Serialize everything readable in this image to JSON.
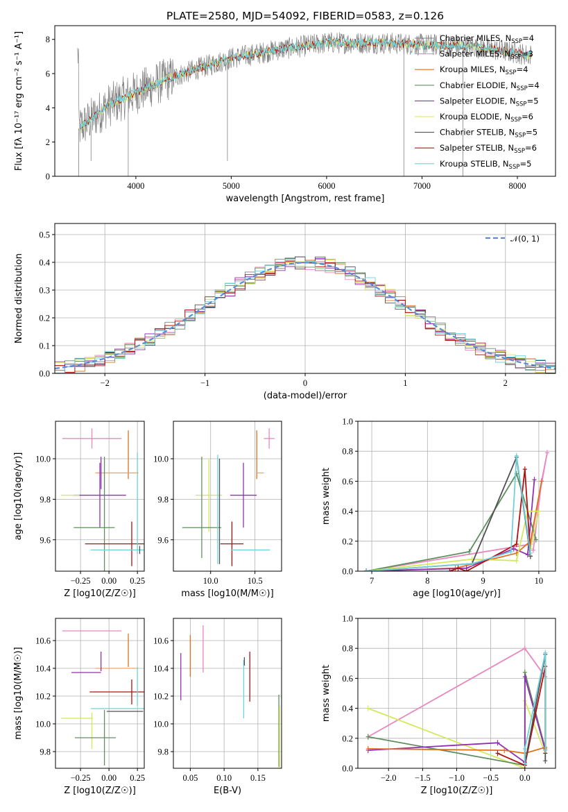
{
  "figure_title": "PLATE=2580, MJD=54092, FIBERID=0583, z=0.126",
  "colors": {
    "chabrier_miles": "#808080",
    "salpeter_miles": "#f4a460",
    "kroupa_miles": "#e07020",
    "chabrier_elodie": "#5f8f5f",
    "salpeter_elodie": "#9030b0",
    "kroupa_elodie": "#d4e85a",
    "chabrier_stelib": "#505050",
    "salpeter_stelib": "#b01010",
    "kroupa_stelib": "#6fd0d8",
    "spectrum_data": "#808080",
    "gaussian": "#5b8bd6",
    "pink": "#e887c0"
  },
  "legend": [
    {
      "label": "Chabrier MILES, N",
      "sub": "SSP",
      "suffix": "=4",
      "color": "#808080"
    },
    {
      "label": "Salpeter MILES, N",
      "sub": "SSP",
      "suffix": "=3",
      "color": "#e887c0"
    },
    {
      "label": "Kroupa MILES, N",
      "sub": "SSP",
      "suffix": "=4",
      "color": "#e07020"
    },
    {
      "label": "Chabrier ELODIE, N",
      "sub": "SSP",
      "suffix": "=4",
      "color": "#5f8f5f"
    },
    {
      "label": "Salpeter ELODIE, N",
      "sub": "SSP",
      "suffix": "=5",
      "color": "#9030b0"
    },
    {
      "label": "Kroupa ELODIE, N",
      "sub": "SSP",
      "suffix": "=6",
      "color": "#d4e85a"
    },
    {
      "label": "Chabrier STELIB, N",
      "sub": "SSP",
      "suffix": "=5",
      "color": "#505050"
    },
    {
      "label": "Salpeter STELIB, N",
      "sub": "SSP",
      "suffix": "=6",
      "color": "#b01010"
    },
    {
      "label": "Kroupa STELIB, N",
      "sub": "SSP",
      "suffix": "=5",
      "color": "#6fd0d8"
    }
  ],
  "hist_legend": "𝒩(0, 1)",
  "chart_data": [
    {
      "type": "line",
      "title": "PLATE=2580, MJD=54092, FIBERID=0583, z=0.126",
      "xlabel": "wavelength [Angstrom, rest frame]",
      "ylabel": "Flux [fλ 10⁻¹⁷ erg cm⁻² s⁻¹ A⁻¹]",
      "xlim": [
        3150,
        8400
      ],
      "ylim": [
        0,
        8.8
      ],
      "xticks": [
        4000,
        5000,
        6000,
        7000,
        8000
      ],
      "yticks": [
        0,
        2,
        4,
        6,
        8
      ],
      "continuum": {
        "x": [
          3400,
          3500,
          3700,
          4000,
          4300,
          4600,
          5000,
          5500,
          6000,
          6500,
          7000,
          7500,
          8000,
          8100
        ],
        "y": [
          2.8,
          3.2,
          4.1,
          4.9,
          5.6,
          6.2,
          6.9,
          7.4,
          7.8,
          7.8,
          7.7,
          7.6,
          7.2,
          7.1
        ]
      }
    },
    {
      "type": "line",
      "xlabel": "(data-model)/error",
      "ylabel": "Normed distribution",
      "xlim": [
        -2.5,
        2.5
      ],
      "ylim": [
        0,
        0.54
      ],
      "xticks": [
        -2,
        -1,
        0,
        1,
        2
      ],
      "yticks": [
        0.0,
        0.1,
        0.2,
        0.3,
        0.4,
        0.5
      ],
      "legend": [
        "𝒩(0, 1)"
      ],
      "bin_width": 0.1
    },
    {
      "type": "scatter",
      "xlabel": "Z [log10(Z/Z☉)]",
      "ylabel": "age [log10(age/yr)]",
      "xlim": [
        -0.47,
        0.31
      ],
      "ylim": [
        9.445,
        10.185
      ],
      "xticks": [
        -0.25,
        0.0,
        0.25
      ],
      "yticks": [
        9.6,
        9.8,
        10.0
      ],
      "points": [
        {
          "x": -0.15,
          "y": 10.1,
          "xerr": 0.26,
          "yerr": 0.05,
          "color": "#e887c0"
        },
        {
          "x": 0.17,
          "y": 10.02,
          "xerr": 0.0,
          "yerr": 0.12,
          "color": "#e07020"
        },
        {
          "x": 0.07,
          "y": 9.93,
          "xerr": 0.19,
          "yerr": 0.0,
          "color": "#f4a460"
        },
        {
          "x": -0.07,
          "y": 9.93,
          "xerr": 0.0,
          "yerr": 0.08,
          "color": "#9030b0"
        },
        {
          "x": -0.08,
          "y": 9.82,
          "xerr": 0.23,
          "yerr": 0.16,
          "color": "#9030b0"
        },
        {
          "x": -0.34,
          "y": 9.82,
          "xerr": 0.08,
          "yerr": 0.0,
          "color": "#d4e85a"
        },
        {
          "x": -0.13,
          "y": 9.66,
          "xerr": 0.18,
          "yerr": 0.0,
          "color": "#5f8f5f"
        },
        {
          "x": -0.04,
          "y": 9.66,
          "xerr": 0.0,
          "yerr": 0.35,
          "color": "#5f8f5f"
        },
        {
          "x": 0.05,
          "y": 9.58,
          "xerr": 0.26,
          "yerr": 0.0,
          "color": "#b01010"
        },
        {
          "x": 0.2,
          "y": 9.58,
          "xerr": 0.0,
          "yerr": 0.11,
          "color": "#b01010"
        },
        {
          "x": 0.08,
          "y": 9.55,
          "xerr": 0.24,
          "yerr": 0.0,
          "color": "#6fd0d8"
        },
        {
          "x": 0.25,
          "y": 9.78,
          "xerr": 0.0,
          "yerr": 0.25,
          "color": "#6fd0d8"
        },
        {
          "x": 0.27,
          "y": 9.55,
          "xerr": 0.0,
          "yerr": 0.02,
          "color": "#505050"
        }
      ]
    },
    {
      "type": "scatter",
      "xlabel": "mass [log10(M/M☉)]",
      "xlim": [
        9.58,
        10.8
      ],
      "ylim": [
        9.445,
        10.185
      ],
      "xticks": [
        10.0,
        10.5
      ],
      "yticks": [
        9.6,
        9.8,
        10.0
      ],
      "points": [
        {
          "x": 10.66,
          "y": 10.1,
          "xerr": 0.06,
          "yerr": 0.05,
          "color": "#e887c0"
        },
        {
          "x": 10.52,
          "y": 10.02,
          "xerr": 0.0,
          "yerr": 0.12,
          "color": "#e07020"
        },
        {
          "x": 10.56,
          "y": 9.93,
          "xerr": 0.04,
          "yerr": 0.0,
          "color": "#f4a460"
        },
        {
          "x": 10.37,
          "y": 9.82,
          "xerr": 0.15,
          "yerr": 0.16,
          "color": "#9030b0"
        },
        {
          "x": 9.98,
          "y": 9.82,
          "xerr": 0.15,
          "yerr": 0.18,
          "color": "#d4e85a"
        },
        {
          "x": 9.9,
          "y": 9.66,
          "xerr": 0.22,
          "yerr": 0.0,
          "color": "#5f8f5f"
        },
        {
          "x": 9.9,
          "y": 9.76,
          "xerr": 0.0,
          "yerr": 0.25,
          "color": "#5f8f5f"
        },
        {
          "x": 10.24,
          "y": 9.58,
          "xerr": 0.13,
          "yerr": 0.11,
          "color": "#b01010"
        },
        {
          "x": 10.45,
          "y": 9.55,
          "xerr": 0.22,
          "yerr": 0.0,
          "color": "#6fd0d8"
        },
        {
          "x": 10.08,
          "y": 9.75,
          "xerr": 0.0,
          "yerr": 0.27,
          "color": "#6fd0d8"
        },
        {
          "x": 10.1,
          "y": 9.74,
          "xerr": 0.0,
          "yerr": 0.26,
          "color": "#505050"
        }
      ]
    },
    {
      "type": "line",
      "xlabel": "age [log10(age/yr)]",
      "ylabel": "mass weight",
      "xlim": [
        6.75,
        10.3
      ],
      "ylim": [
        0,
        1.0
      ],
      "xticks": [
        7,
        8,
        9,
        10
      ],
      "yticks": [
        0.0,
        0.2,
        0.4,
        0.6,
        0.8,
        1.0
      ],
      "series": [
        {
          "color": "#e887c0",
          "x": [
            6.9,
            9.85,
            10.15,
            10.05,
            9.9
          ],
          "y": [
            0.0,
            0.18,
            0.79,
            0.6,
            0.14
          ]
        },
        {
          "color": "#e07020",
          "x": [
            6.9,
            8.5,
            9.6,
            9.85,
            10.05
          ],
          "y": [
            0.0,
            0.02,
            0.12,
            0.2,
            0.6
          ]
        },
        {
          "color": "#5f8f5f",
          "x": [
            6.9,
            8.75,
            9.6,
            9.95
          ],
          "y": [
            0.0,
            0.13,
            0.65,
            0.21
          ]
        },
        {
          "color": "#9030b0",
          "x": [
            6.9,
            8.7,
            9.55,
            9.8,
            9.92
          ],
          "y": [
            0.0,
            0.02,
            0.15,
            0.11,
            0.61
          ]
        },
        {
          "color": "#d4e85a",
          "x": [
            6.9,
            8.8,
            9.6,
            9.8,
            10.0,
            9.85
          ],
          "y": [
            0.0,
            0.08,
            0.07,
            0.4,
            0.4,
            0.15
          ]
        },
        {
          "color": "#b01010",
          "x": [
            8.4,
            8.55,
            8.7,
            9.6,
            9.75,
            9.85
          ],
          "y": [
            0.0,
            0.02,
            0.0,
            0.18,
            0.68,
            0.1
          ]
        },
        {
          "color": "#505050",
          "x": [
            6.9,
            8.8,
            9.6,
            9.85
          ],
          "y": [
            0.0,
            0.05,
            0.76,
            0.1
          ]
        },
        {
          "color": "#6fd0d8",
          "x": [
            6.9,
            8.8,
            9.5,
            9.6,
            9.85
          ],
          "y": [
            0.0,
            0.05,
            0.13,
            0.77,
            0.12
          ]
        }
      ]
    },
    {
      "type": "scatter",
      "xlabel": "Z [log10(Z/Z☉)]",
      "ylabel": "mass [log10(M/M☉)]",
      "xlim": [
        -0.47,
        0.31
      ],
      "ylim": [
        9.68,
        10.76
      ],
      "xticks": [
        -0.25,
        0.0,
        0.25
      ],
      "yticks": [
        9.8,
        10.0,
        10.2,
        10.4,
        10.6
      ],
      "points": [
        {
          "x": -0.15,
          "y": 10.67,
          "xerr": 0.26,
          "yerr": 0.0,
          "color": "#e887c0"
        },
        {
          "x": 0.17,
          "y": 10.53,
          "xerr": 0.0,
          "yerr": 0.12,
          "color": "#e07020"
        },
        {
          "x": 0.07,
          "y": 10.4,
          "xerr": 0.19,
          "yerr": 0.0,
          "color": "#f4a460"
        },
        {
          "x": -0.07,
          "y": 10.45,
          "xerr": 0.0,
          "yerr": 0.07,
          "color": "#9030b0"
        },
        {
          "x": -0.2,
          "y": 10.37,
          "xerr": 0.13,
          "yerr": 0.0,
          "color": "#9030b0"
        },
        {
          "x": -0.28,
          "y": 10.04,
          "xerr": 0.14,
          "yerr": 0.0,
          "color": "#d4e85a"
        },
        {
          "x": -0.15,
          "y": 9.95,
          "xerr": 0.0,
          "yerr": 0.13,
          "color": "#d4e85a"
        },
        {
          "x": -0.12,
          "y": 9.9,
          "xerr": 0.18,
          "yerr": 0.0,
          "color": "#5f8f5f"
        },
        {
          "x": -0.04,
          "y": 9.9,
          "xerr": 0.0,
          "yerr": 0.2,
          "color": "#5f8f5f"
        },
        {
          "x": 0.07,
          "y": 10.23,
          "xerr": 0.24,
          "yerr": 0.0,
          "color": "#b01010"
        },
        {
          "x": 0.2,
          "y": 10.23,
          "xerr": 0.0,
          "yerr": 0.09,
          "color": "#b01010"
        },
        {
          "x": 0.08,
          "y": 10.11,
          "xerr": 0.24,
          "yerr": 0.0,
          "color": "#6fd0d8"
        },
        {
          "x": 0.25,
          "y": 10.27,
          "xerr": 0.0,
          "yerr": 0.14,
          "color": "#6fd0d8"
        },
        {
          "x": 0.14,
          "y": 10.09,
          "xerr": 0.16,
          "yerr": 0.0,
          "color": "#505050"
        }
      ]
    },
    {
      "type": "scatter",
      "xlabel": "E(B-V)",
      "xlim": [
        0.025,
        0.185
      ],
      "ylim": [
        9.68,
        10.76
      ],
      "xticks": [
        0.05,
        0.1,
        0.15
      ],
      "yticks": [
        9.8,
        10.0,
        10.2,
        10.4,
        10.6
      ],
      "points": [
        {
          "x": 0.069,
          "y": 10.54,
          "xerr": 0.0,
          "yerr": 0.17,
          "color": "#e887c0"
        },
        {
          "x": 0.05,
          "y": 10.49,
          "xerr": 0.0,
          "yerr": 0.15,
          "color": "#e07020"
        },
        {
          "x": 0.036,
          "y": 10.34,
          "xerr": 0.0,
          "yerr": 0.17,
          "color": "#9030b0"
        },
        {
          "x": 0.138,
          "y": 10.34,
          "xerr": 0.0,
          "yerr": 0.18,
          "color": "#b01010"
        },
        {
          "x": 0.129,
          "y": 10.25,
          "xerr": 0.0,
          "yerr": 0.21,
          "color": "#6fd0d8"
        },
        {
          "x": 0.13,
          "y": 10.45,
          "xerr": 0.0,
          "yerr": 0.03,
          "color": "#505050"
        },
        {
          "x": 0.181,
          "y": 9.95,
          "xerr": 0.0,
          "yerr": 0.26,
          "color": "#5f8f5f"
        },
        {
          "x": 0.182,
          "y": 9.9,
          "xerr": 0.0,
          "yerr": 0.23,
          "color": "#d4e85a"
        }
      ]
    },
    {
      "type": "line",
      "xlabel": "Z [log10(Z/Z☉)]",
      "ylabel": "mass weight",
      "xlim": [
        -2.45,
        0.45
      ],
      "ylim": [
        0,
        1.0
      ],
      "xticks": [
        -2.0,
        -1.5,
        -1.0,
        -0.5,
        0.0
      ],
      "yticks": [
        0.0,
        0.2,
        0.4,
        0.6,
        0.8,
        1.0
      ],
      "series": [
        {
          "color": "#e887c0",
          "x": [
            -2.3,
            0.0,
            0.3,
            0.3
          ],
          "y": [
            0.21,
            0.8,
            0.61,
            0.1
          ]
        },
        {
          "color": "#d4e85a",
          "x": [
            -2.3,
            0.0,
            0.0,
            0.3
          ],
          "y": [
            0.4,
            0.0,
            0.45,
            0.1
          ]
        },
        {
          "color": "#5f8f5f",
          "x": [
            -2.3,
            0.0,
            0.0,
            0.3
          ],
          "y": [
            0.21,
            0.02,
            0.64,
            0.13
          ]
        },
        {
          "color": "#9030b0",
          "x": [
            -2.3,
            -0.4,
            0.0,
            0.0,
            0.3
          ],
          "y": [
            0.12,
            0.17,
            0.04,
            0.61,
            0.12
          ]
        },
        {
          "color": "#e07020",
          "x": [
            -2.3,
            -0.3,
            0.0,
            0.3
          ],
          "y": [
            0.13,
            0.12,
            0.1,
            0.14
          ]
        },
        {
          "color": "#b01010",
          "x": [
            -0.4,
            0.0,
            0.3,
            0.3
          ],
          "y": [
            0.1,
            0.02,
            0.68,
            0.1
          ]
        },
        {
          "color": "#505050",
          "x": [
            0.0,
            0.3,
            0.3
          ],
          "y": [
            0.03,
            0.76,
            0.05
          ]
        },
        {
          "color": "#6fd0d8",
          "x": [
            0.0,
            0.0,
            0.3,
            0.3
          ],
          "y": [
            0.03,
            0.13,
            0.77,
            0.12
          ]
        }
      ]
    }
  ]
}
